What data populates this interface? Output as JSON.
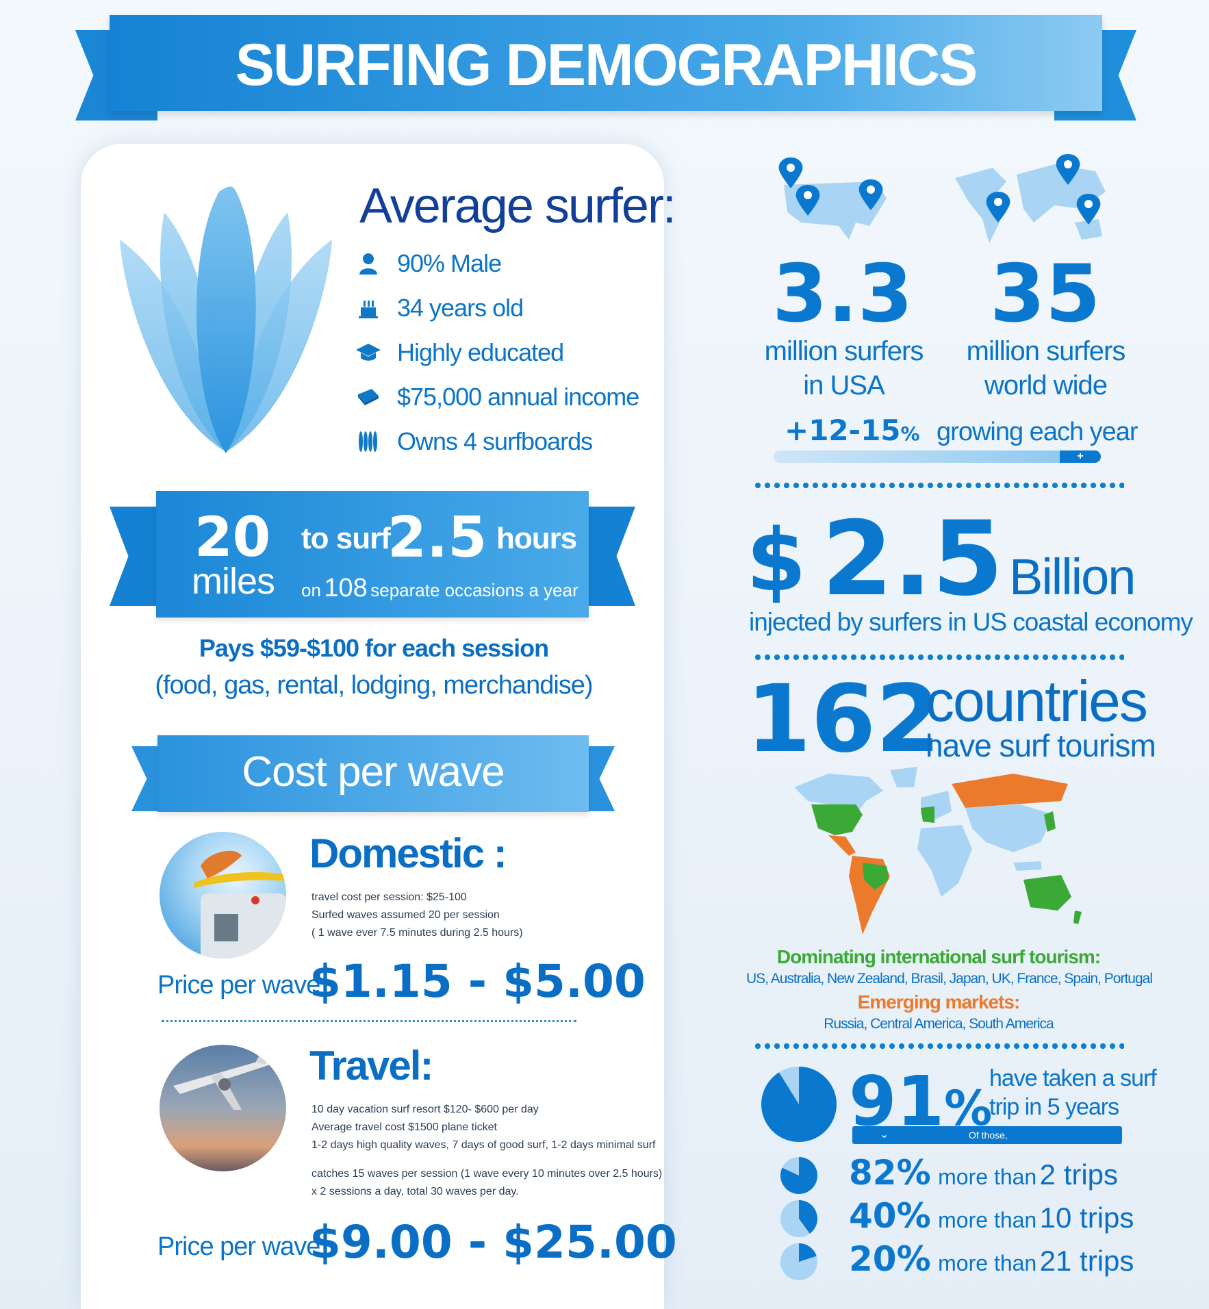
{
  "title": "SURFING DEMOGRAPHICS",
  "average_surfer": {
    "heading": "Average surfer:",
    "items": [
      {
        "icon": "person-icon",
        "text": "90% Male"
      },
      {
        "icon": "cake-icon",
        "text": "34 years old"
      },
      {
        "icon": "graduation-cap-icon",
        "text": "Highly educated"
      },
      {
        "icon": "money-icon",
        "text": "$75,000 annual income"
      },
      {
        "icon": "surfboards-icon",
        "text": "Owns 4 surfboards"
      }
    ]
  },
  "commute": {
    "miles_num": "20",
    "miles_label": "miles",
    "to_surf": "to surf",
    "hours_num": "2.5",
    "hours_label": "hours",
    "on": "on",
    "occasions_num": "108",
    "occasions_text": "separate occasions a year",
    "pays": "Pays $59-$100 for each session",
    "pays_detail": "(food, gas, rental, lodging, merchandise)"
  },
  "cost_per_wave": {
    "heading": "Cost per wave",
    "domestic": {
      "title": "Domestic :",
      "lines": [
        "travel cost per session: $25-100",
        "Surfed waves assumed 20 per session",
        "( 1 wave ever 7.5 minutes during 2.5 hours)"
      ],
      "price_label": "Price per wave",
      "price": "$1.15 - $5.00"
    },
    "travel": {
      "title": "Travel:",
      "lines": [
        "10 day vacation surf resort $120- $600 per day",
        "Average travel cost $1500 plane ticket",
        "1-2 days high quality waves, 7 days of good surf, 1-2 days minimal surf"
      ],
      "lines2": [
        "catches 15 waves per session (1 wave every 10 minutes over 2.5 hours)",
        "x 2 sessions a day, total 30 waves per day."
      ],
      "price_label": "Price per wave",
      "price": "$9.00 - $25.00"
    }
  },
  "surfers": {
    "usa_num": "3.3",
    "usa_label1": "million surfers",
    "usa_label2": "in USA",
    "world_num": "35",
    "world_label1": "million surfers",
    "world_label2": "world wide",
    "growth_num": "+12-15",
    "growth_pct": "%",
    "growth_text": "growing each year",
    "growth_plus": "+"
  },
  "economy": {
    "dollar": "$",
    "num": "2.5",
    "unit": "Billion",
    "text": "injected by surfers in US coastal economy"
  },
  "countries": {
    "num": "162",
    "word": "countries",
    "text": "have surf tourism",
    "dominating_label": "Dominating international surf tourism:",
    "dominating_list": "US, Australia, New Zealand, Brasil,  Japan, UK, France, Spain, Portugal",
    "emerging_label": "Emerging markets:",
    "emerging_list": "Russia, Central America, South America"
  },
  "trips": {
    "main_num": "91",
    "main_pct": "%",
    "main_text1": "have taken a surf",
    "main_text2": "trip in 5 years",
    "main_fraction": 0.91,
    "of_those": "Of those,",
    "rows": [
      {
        "num": "82%",
        "label": "more than",
        "count": "2 trips",
        "fraction": 0.82
      },
      {
        "num": "40%",
        "label": "more than",
        "count": "10 trips",
        "fraction": 0.4
      },
      {
        "num": "20%",
        "label": "more than",
        "count": "21 trips",
        "fraction": 0.2
      }
    ]
  },
  "colors": {
    "primary": "#0b78d0",
    "navy": "#123f99",
    "green": "#3aa935",
    "orange": "#ec7a2c",
    "map_light": "#a9d4f3"
  }
}
